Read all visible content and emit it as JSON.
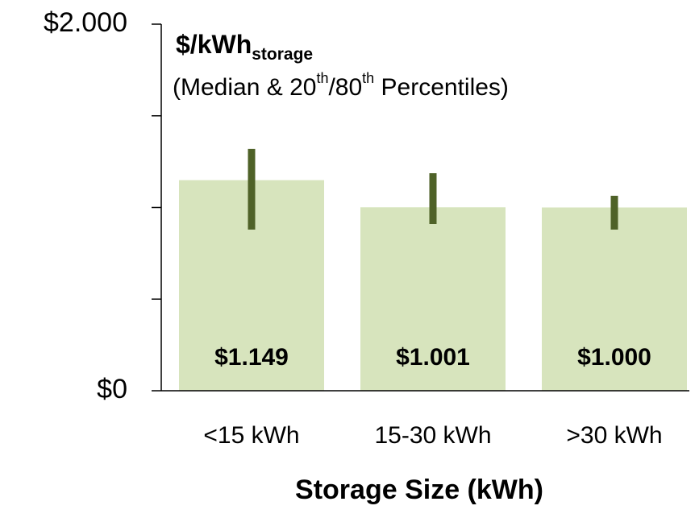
{
  "chart_data": {
    "type": "bar",
    "title": "$/kWh",
    "title_subscript": "storage",
    "subtitle_parts": [
      "(Median & 20",
      "th",
      "/80",
      "th",
      " Percentiles)"
    ],
    "xlabel": "Storage Size (kWh)",
    "categories": [
      "<15 kWh",
      "15-30 kWh",
      ">30 kWh"
    ],
    "values": [
      1149,
      1001,
      1000
    ],
    "value_labels": [
      "$1.149",
      "$1.001",
      "$1.000"
    ],
    "low": [
      879,
      910,
      879
    ],
    "high": [
      1319,
      1187,
      1064
    ],
    "color": "#d7e4bd",
    "error_color": "#4f6228",
    "ylim": [
      0,
      2000
    ],
    "yticks": [
      {
        "value": 0,
        "label": "$0"
      },
      {
        "value": 2000,
        "label": "$2.000"
      }
    ],
    "minor_yticks": [
      500,
      1000,
      1500
    ]
  }
}
